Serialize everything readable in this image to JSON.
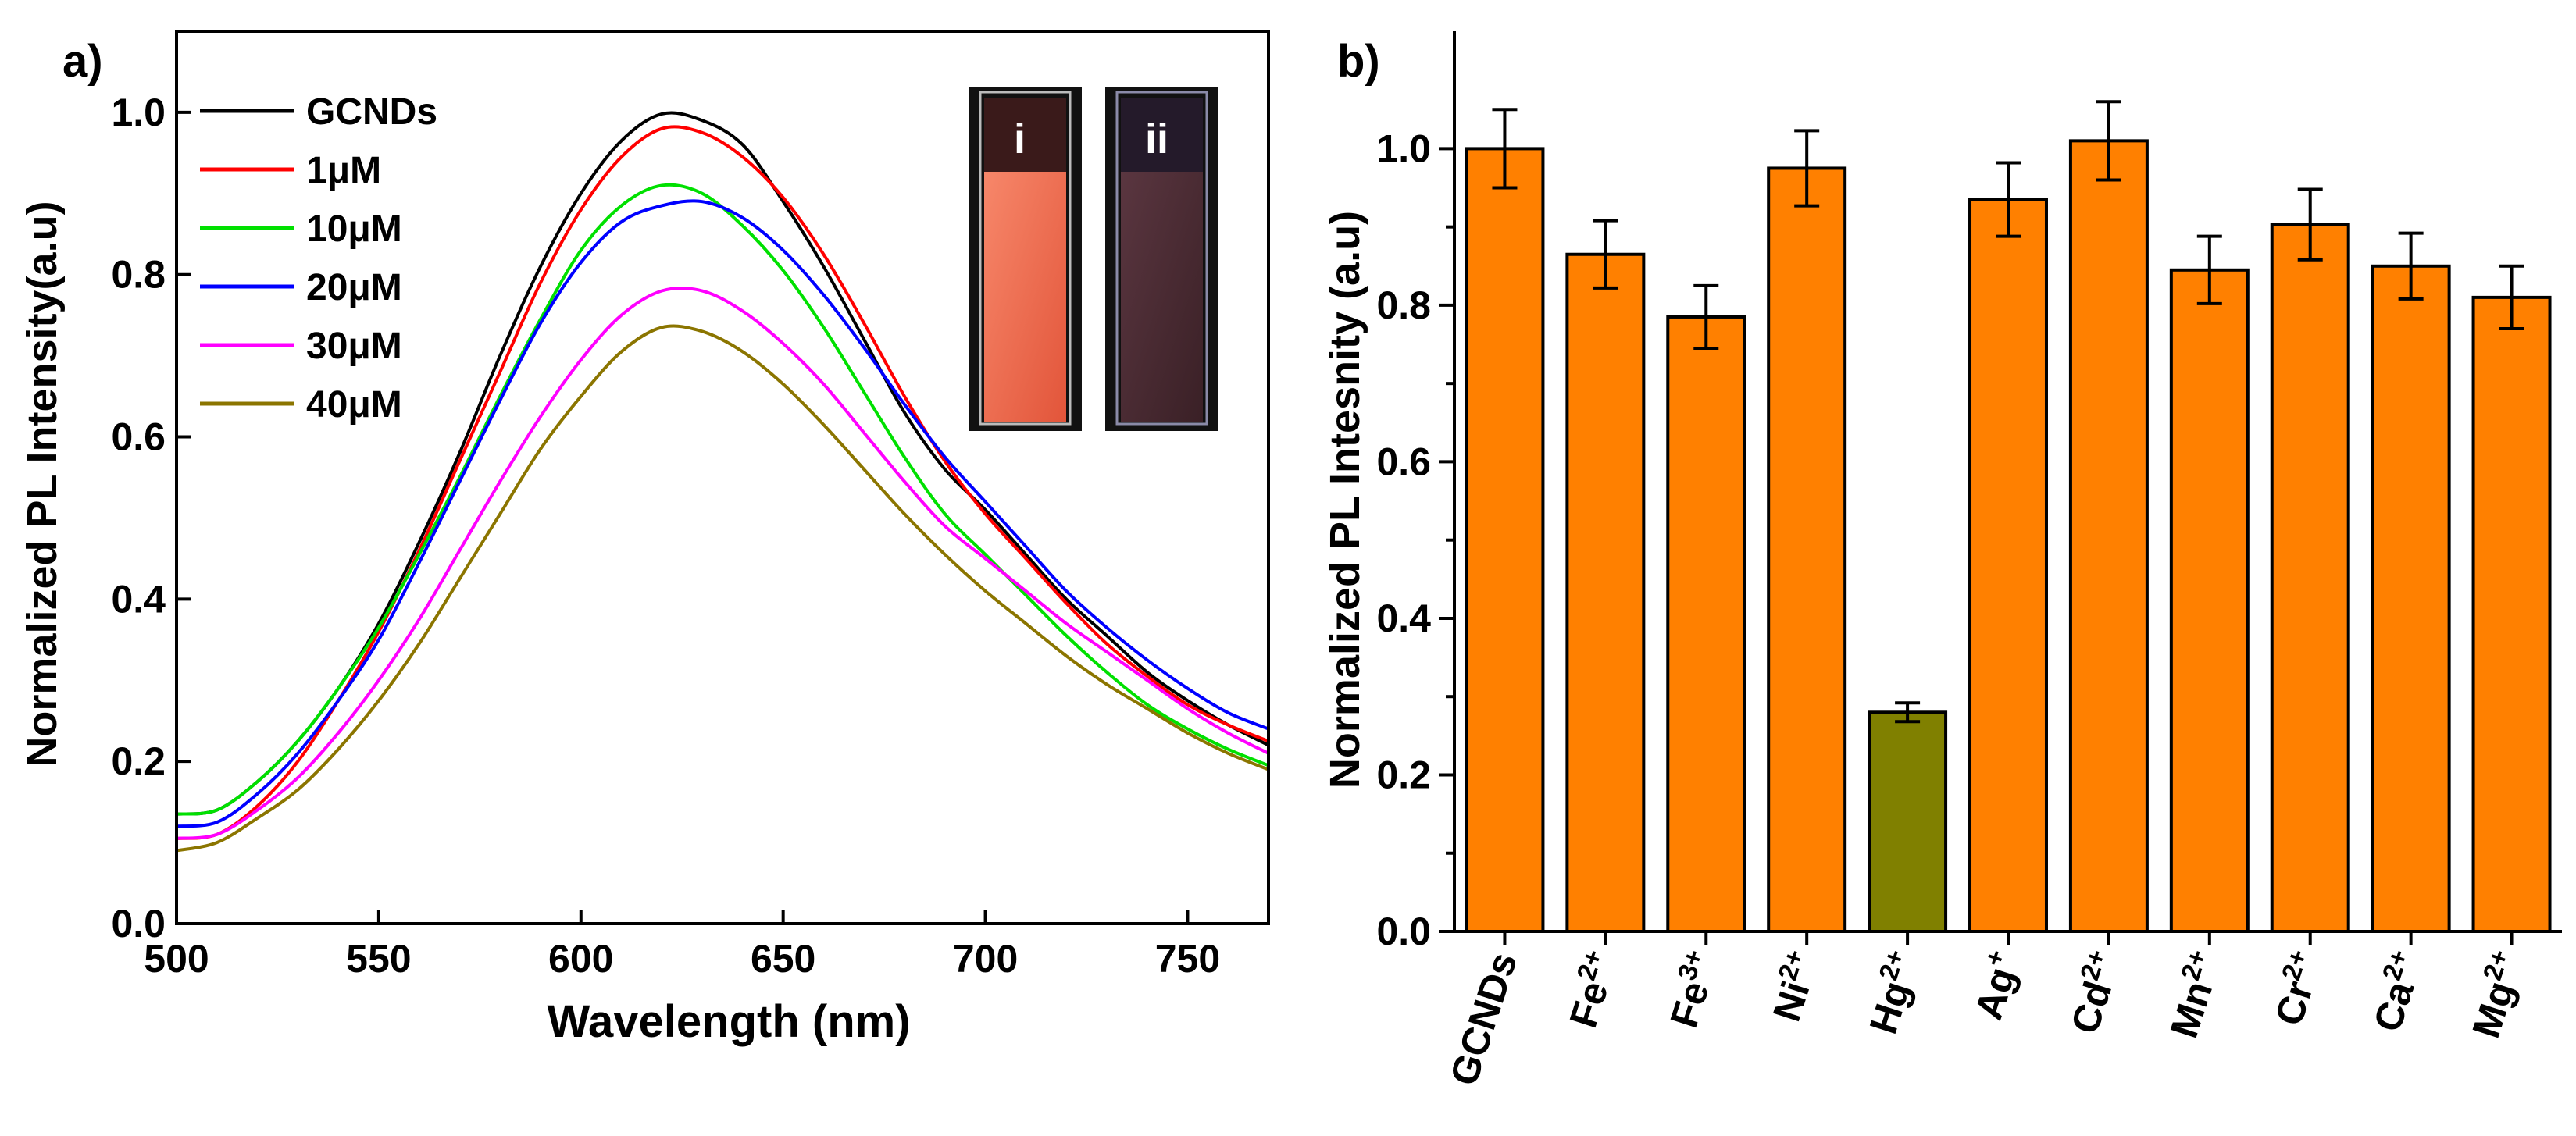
{
  "colors": {
    "axis": "#000000",
    "bar": "#FF8000",
    "bar_highlight": "#808000",
    "bar_edge": "#000000",
    "inset_i": "#F26A4A",
    "inset_ii": "#4A2A30"
  },
  "chart_data": [
    {
      "panel_label": "a)",
      "type": "line",
      "title": "",
      "xlabel": "Wavelength (nm)",
      "ylabel": "Normalized PL Intensity(a.u)",
      "xlim": [
        500,
        770
      ],
      "ylim": [
        0.0,
        1.1
      ],
      "xticks": [
        500,
        550,
        600,
        650,
        700,
        750
      ],
      "yticks": [
        0.0,
        0.2,
        0.4,
        0.6,
        0.8,
        1.0
      ],
      "xtick_labels": [
        "500",
        "550",
        "600",
        "650",
        "700",
        "750"
      ],
      "ytick_labels": [
        "0.0",
        "0.2",
        "0.4",
        "0.6",
        "0.8",
        "1.0"
      ],
      "legend_position": "top-left",
      "inset": {
        "position": "top-right",
        "labels": [
          "i",
          "ii"
        ]
      },
      "x": [
        500,
        510,
        520,
        530,
        540,
        550,
        560,
        570,
        580,
        590,
        600,
        610,
        620,
        630,
        640,
        650,
        660,
        670,
        680,
        690,
        700,
        710,
        720,
        730,
        740,
        750,
        760,
        770
      ],
      "series": [
        {
          "name": "GCNDs",
          "color": "#000000",
          "values": [
            0.135,
            0.14,
            0.175,
            0.225,
            0.29,
            0.37,
            0.47,
            0.58,
            0.7,
            0.81,
            0.9,
            0.965,
            0.998,
            0.99,
            0.96,
            0.89,
            0.81,
            0.72,
            0.63,
            0.56,
            0.51,
            0.455,
            0.4,
            0.355,
            0.31,
            0.275,
            0.245,
            0.22
          ]
        },
        {
          "name": "1μM",
          "color": "#FF0000",
          "values": [
            0.105,
            0.11,
            0.145,
            0.2,
            0.275,
            0.36,
            0.46,
            0.57,
            0.68,
            0.79,
            0.88,
            0.945,
            0.98,
            0.975,
            0.945,
            0.895,
            0.825,
            0.74,
            0.65,
            0.57,
            0.505,
            0.45,
            0.395,
            0.345,
            0.305,
            0.27,
            0.245,
            0.225
          ]
        },
        {
          "name": "10μM",
          "color": "#00E000",
          "values": [
            0.135,
            0.14,
            0.175,
            0.225,
            0.29,
            0.365,
            0.455,
            0.55,
            0.65,
            0.745,
            0.83,
            0.885,
            0.91,
            0.9,
            0.86,
            0.805,
            0.735,
            0.655,
            0.575,
            0.505,
            0.455,
            0.405,
            0.355,
            0.31,
            0.27,
            0.24,
            0.215,
            0.195
          ]
        },
        {
          "name": "20μM",
          "color": "#0000FF",
          "values": [
            0.12,
            0.125,
            0.16,
            0.21,
            0.275,
            0.35,
            0.445,
            0.545,
            0.645,
            0.74,
            0.815,
            0.865,
            0.885,
            0.89,
            0.87,
            0.83,
            0.775,
            0.71,
            0.64,
            0.575,
            0.52,
            0.465,
            0.41,
            0.365,
            0.325,
            0.29,
            0.26,
            0.24
          ]
        },
        {
          "name": "30μM",
          "color": "#FF00FF",
          "values": [
            0.105,
            0.11,
            0.14,
            0.18,
            0.235,
            0.3,
            0.375,
            0.46,
            0.545,
            0.625,
            0.695,
            0.75,
            0.78,
            0.78,
            0.755,
            0.715,
            0.665,
            0.605,
            0.545,
            0.49,
            0.45,
            0.41,
            0.37,
            0.335,
            0.3,
            0.265,
            0.235,
            0.21
          ]
        },
        {
          "name": "40μM",
          "color": "#8B7500",
          "values": [
            0.09,
            0.1,
            0.13,
            0.165,
            0.215,
            0.275,
            0.345,
            0.425,
            0.505,
            0.585,
            0.65,
            0.705,
            0.735,
            0.73,
            0.705,
            0.665,
            0.615,
            0.56,
            0.505,
            0.455,
            0.41,
            0.37,
            0.33,
            0.295,
            0.265,
            0.235,
            0.21,
            0.19
          ]
        }
      ]
    },
    {
      "panel_label": "b)",
      "type": "bar",
      "title": "",
      "xlabel": "",
      "ylabel": "Normalized PL Intesnity (a.u)",
      "ylim": [
        0.0,
        1.15
      ],
      "yticks": [
        0.0,
        0.2,
        0.4,
        0.6,
        0.8,
        1.0
      ],
      "ytick_labels": [
        "0.0",
        "0.2",
        "0.4",
        "0.6",
        "0.8",
        "1.0"
      ],
      "categories": [
        {
          "base": "GCNDs",
          "sup": ""
        },
        {
          "base": "Fe",
          "sup": "2+"
        },
        {
          "base": "Fe",
          "sup": "3+"
        },
        {
          "base": "Ni",
          "sup": "2+"
        },
        {
          "base": "Hg",
          "sup": "2+"
        },
        {
          "base": "Ag",
          "sup": "+"
        },
        {
          "base": "Cd",
          "sup": "2+"
        },
        {
          "base": "Mn",
          "sup": "2+"
        },
        {
          "base": "Cr",
          "sup": "2+"
        },
        {
          "base": "Ca",
          "sup": "2+"
        },
        {
          "base": "Mg",
          "sup": "2+"
        }
      ],
      "values": [
        1.0,
        0.865,
        0.785,
        0.975,
        0.28,
        0.935,
        1.01,
        0.845,
        0.903,
        0.85,
        0.81
      ],
      "errors": [
        0.05,
        0.043,
        0.04,
        0.048,
        0.012,
        0.047,
        0.05,
        0.043,
        0.045,
        0.042,
        0.04
      ],
      "highlight_index": 4
    }
  ]
}
